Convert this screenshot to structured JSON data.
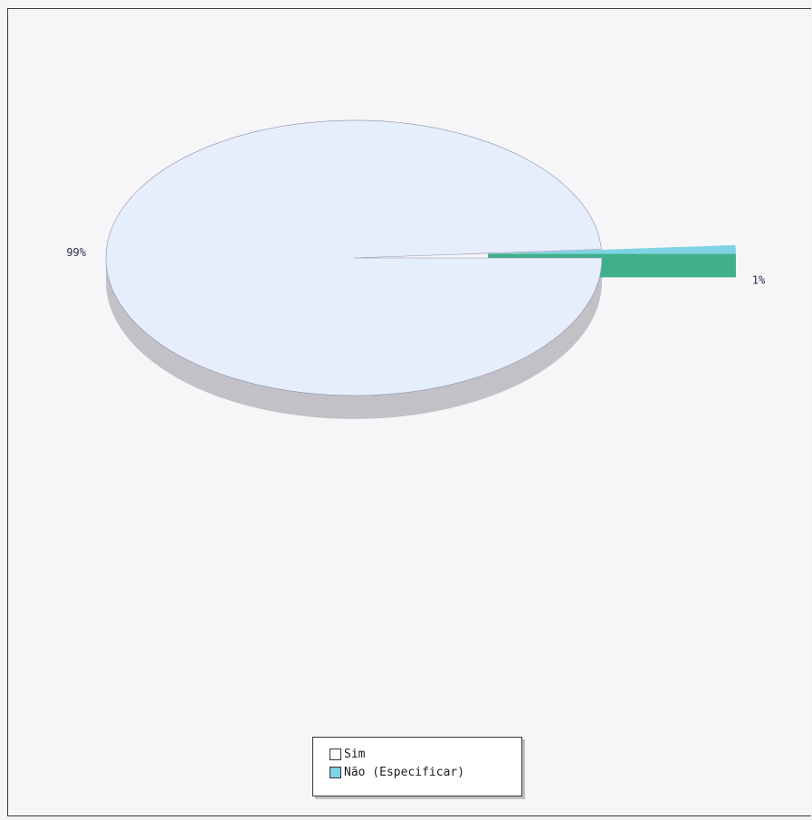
{
  "chart_data": {
    "type": "pie",
    "title": "",
    "slices": [
      {
        "label": "Sim",
        "value": 99,
        "label_text": "99%",
        "color": "#e6eefb",
        "side_color": "#c2c2c6"
      },
      {
        "label": "Não (Especificar)",
        "value": 1,
        "label_text": "1%",
        "color": "#7ed3e4",
        "side_color": "#3fb08a"
      }
    ],
    "exploded_slice": "Não (Especificar)",
    "style": "3d",
    "legend_position": "bottom-center"
  },
  "legend": {
    "items": [
      {
        "label": "Sim",
        "color": "#ffffff"
      },
      {
        "label": "Não (Especificar)",
        "color": "#7ed3e4"
      }
    ]
  }
}
